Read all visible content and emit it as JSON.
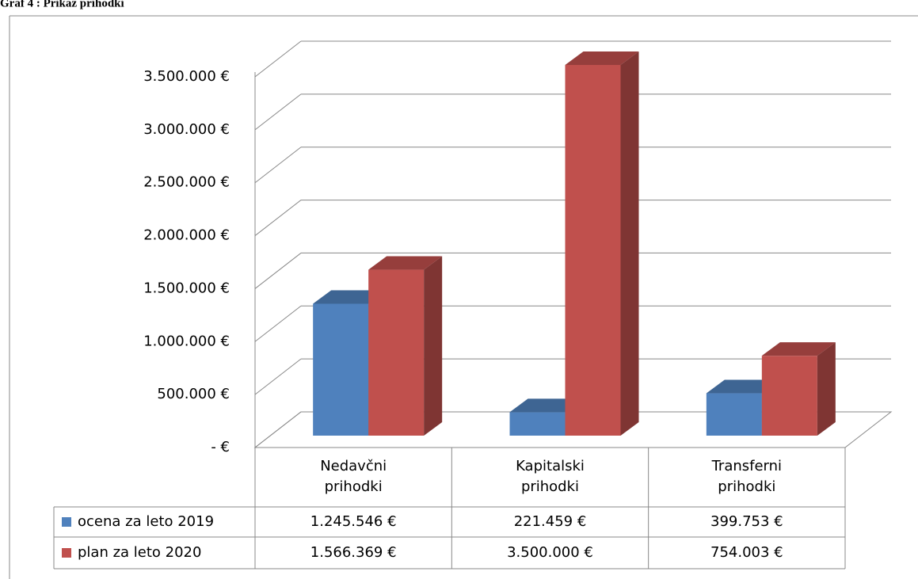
{
  "chart_data": {
    "type": "bar3d",
    "title": "Graf 4 : Prikaz prihodki",
    "categories": [
      "Nedavčni prihodki",
      "Kapitalski prihodki",
      "Transferni prihodki"
    ],
    "series": [
      {
        "name": "ocena za leto 2019",
        "color": "#4f81bd",
        "values": [
          1245546,
          221459,
          399753
        ],
        "value_labels": [
          "1.245.546 €",
          "221.459 €",
          "399.753 €"
        ]
      },
      {
        "name": "plan za leto 2020",
        "color": "#c0504d",
        "values": [
          1566369,
          3500000,
          754003
        ],
        "value_labels": [
          "1.566.369 €",
          "3.500.000 €",
          "754.003 €"
        ]
      }
    ],
    "ylim": [
      0,
      3500000
    ],
    "yticks": [
      {
        "value": 0,
        "label": "-  €"
      },
      {
        "value": 500000,
        "label": "500.000 €"
      },
      {
        "value": 1000000,
        "label": "1.000.000 €"
      },
      {
        "value": 1500000,
        "label": "1.500.000 €"
      },
      {
        "value": 2000000,
        "label": "2.000.000 €"
      },
      {
        "value": 2500000,
        "label": "2.500.000 €"
      },
      {
        "value": 3000000,
        "label": "3.000.000 €"
      },
      {
        "value": 3500000,
        "label": "3.500.000 €"
      }
    ],
    "grid": true
  }
}
